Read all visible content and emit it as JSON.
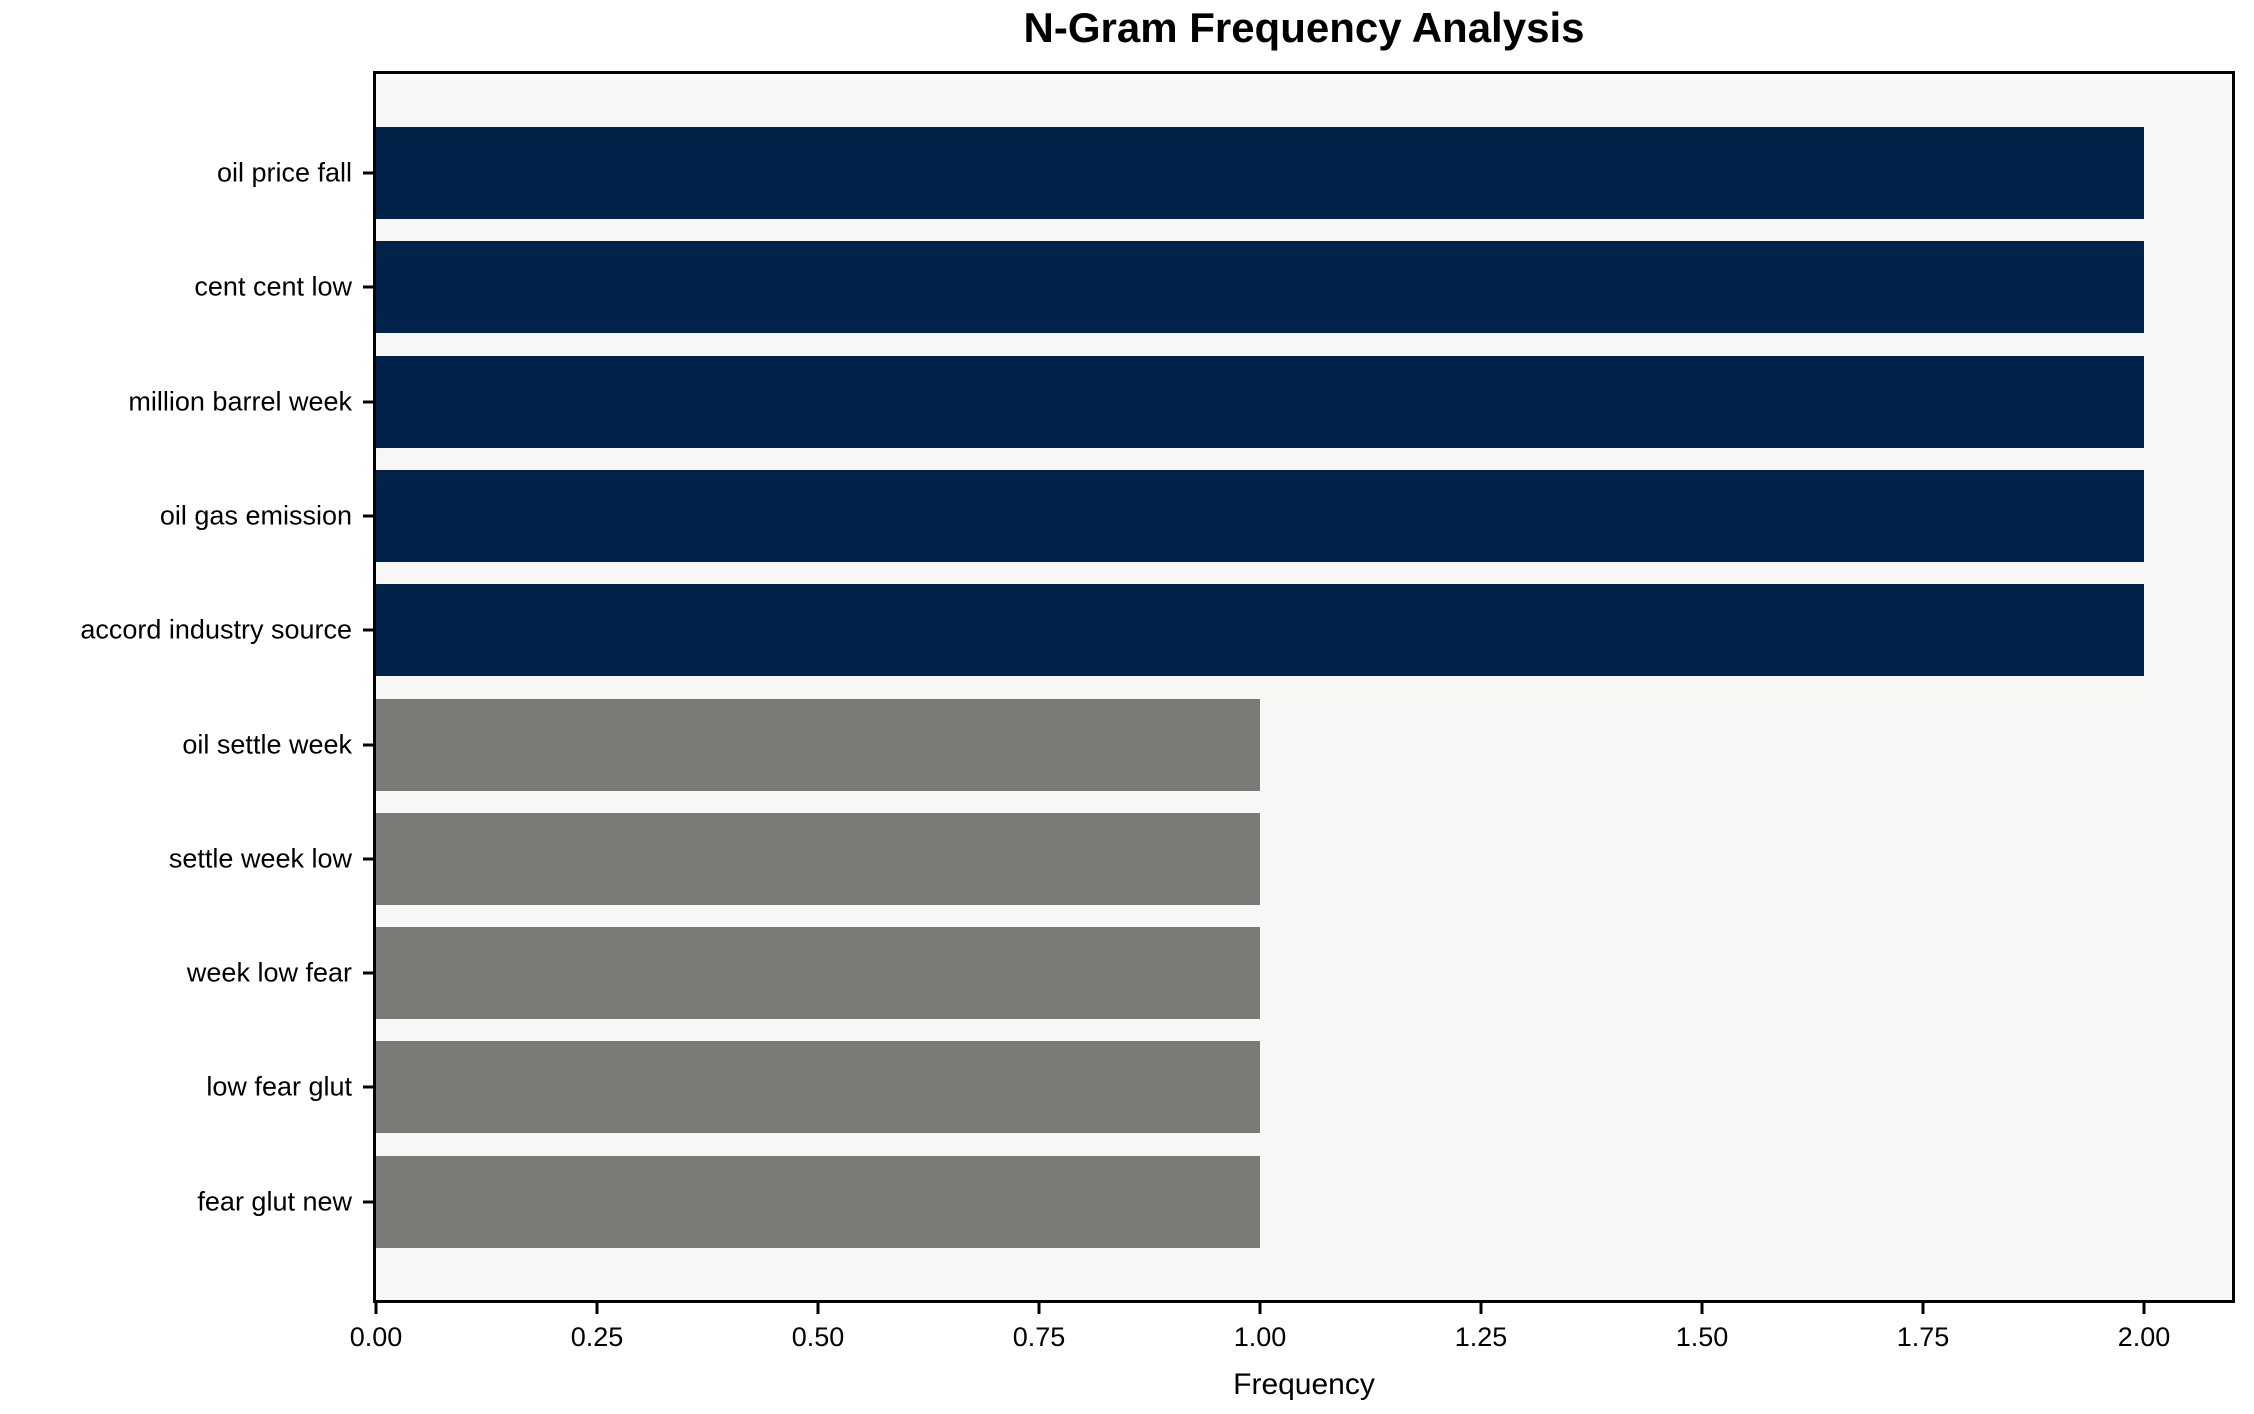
{
  "figure": {
    "background": "#ffffff"
  },
  "chart_data": {
    "type": "bar",
    "orientation": "horizontal",
    "title": "N-Gram Frequency Analysis",
    "xlabel": "Frequency",
    "ylabel": "",
    "categories": [
      "oil price fall",
      "cent cent low",
      "million barrel week",
      "oil gas emission",
      "accord industry source",
      "oil settle week",
      "settle week low",
      "week low fear",
      "low fear glut",
      "fear glut new"
    ],
    "values": [
      2,
      2,
      2,
      2,
      2,
      1,
      1,
      1,
      1,
      1
    ],
    "colors": [
      "#022349",
      "#022349",
      "#022349",
      "#022349",
      "#022349",
      "#7b7a76",
      "#7b7a76",
      "#7b7a76",
      "#7b7a76",
      "#7b7a76"
    ],
    "color_legend": {
      "high_frequency": "#022349",
      "low_frequency": "#7b7a76"
    },
    "xlim": [
      0,
      2.1
    ],
    "x_ticks": [
      0,
      0.25,
      0.5,
      0.75,
      1.0,
      1.25,
      1.5,
      1.75,
      2.0
    ],
    "x_tick_labels": [
      "0.00",
      "0.25",
      "0.50",
      "0.75",
      "1.00",
      "1.25",
      "1.50",
      "1.75",
      "2.00"
    ],
    "grid": false,
    "legend": false,
    "plot_background": "#f7f7f5",
    "spine_color": "#000000"
  }
}
